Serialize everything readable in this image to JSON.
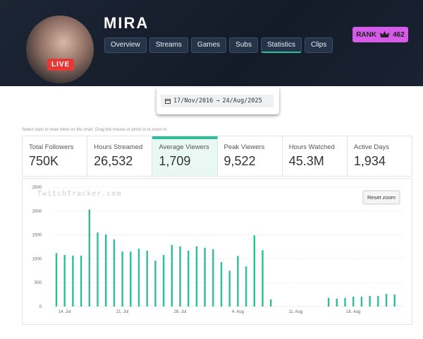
{
  "header": {
    "name": "MIRA",
    "live": "LIVE",
    "nav": [
      "Overview",
      "Streams",
      "Games",
      "Subs",
      "Statistics",
      "Clips"
    ],
    "rank_label": "RANK",
    "rank": "462"
  },
  "date_range": {
    "from": "17/Nov/2016",
    "to": "24/Aug/2025"
  },
  "hint": "Select stats to draw them on the chart. Drag the mouse or pinch in to zoom in.",
  "stats": [
    {
      "label": "Total Followers",
      "value": "750K"
    },
    {
      "label": "Hours Streamed",
      "value": "26,532"
    },
    {
      "label": "Average Viewers",
      "value": "1,709"
    },
    {
      "label": "Peak Viewers",
      "value": "9,522"
    },
    {
      "label": "Hours Watched",
      "value": "45.3M"
    },
    {
      "label": "Active Days",
      "value": "1,934"
    }
  ],
  "chart_data": {
    "type": "bar",
    "watermark": "TwitchTracker.com",
    "reset": "Reset zoom",
    "color": "#2bbf9a",
    "grid": true,
    "categories": [
      null,
      "14. Jul",
      null,
      null,
      null,
      null,
      null,
      null,
      "21. Jul",
      null,
      null,
      null,
      null,
      null,
      null,
      "28. Jul",
      null,
      null,
      null,
      null,
      null,
      null,
      "4. Aug",
      null,
      null,
      null,
      null,
      null,
      null,
      "11. Aug",
      null,
      null,
      null,
      null,
      null,
      null,
      "18. Aug",
      null,
      null,
      null,
      null,
      null
    ],
    "values": [
      1120,
      1080,
      1065,
      1065,
      2030,
      1550,
      1510,
      1405,
      1150,
      1150,
      1210,
      1170,
      960,
      1080,
      1290,
      1260,
      1170,
      1260,
      1230,
      1200,
      930,
      750,
      1060,
      840,
      1490,
      1180,
      150,
      null,
      null,
      null,
      null,
      null,
      null,
      180,
      165,
      180,
      205,
      205,
      220,
      220,
      265,
      250
    ],
    "ylim": [
      0,
      2500
    ],
    "yticks": [
      0,
      500,
      1000,
      1500,
      2000,
      2500
    ]
  }
}
